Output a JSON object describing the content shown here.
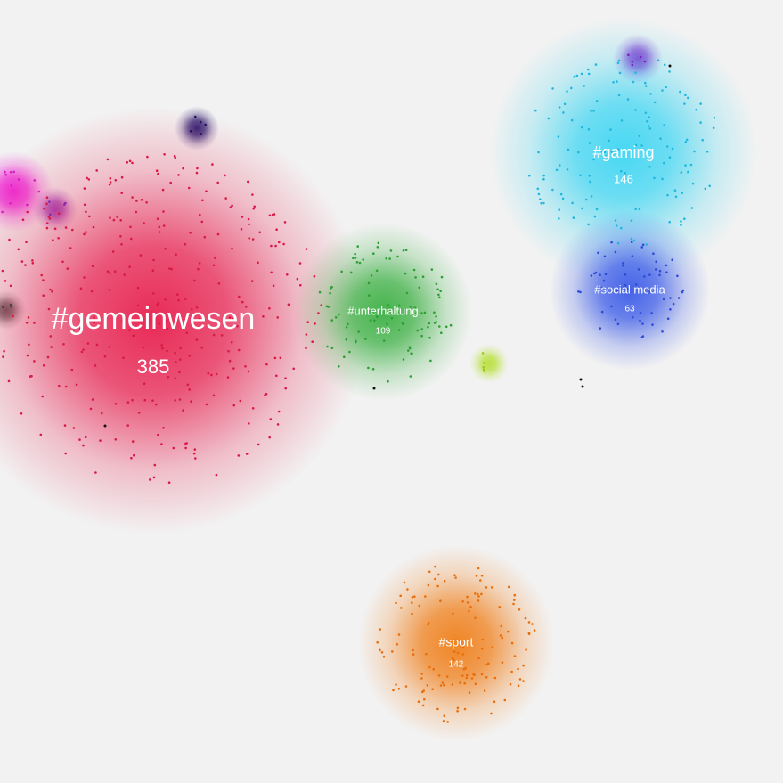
{
  "clusters": [
    {
      "label": "#gemeinwesen",
      "count": 385
    },
    {
      "label": "#unterhaltung",
      "count": 109
    },
    {
      "label": "#gaming",
      "count": 146
    },
    {
      "label": "#social media",
      "count": 63
    },
    {
      "label": "#sport",
      "count": 142
    }
  ]
}
